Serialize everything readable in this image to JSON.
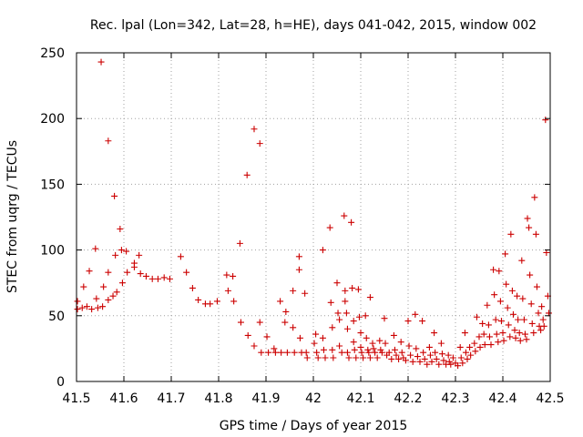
{
  "chart_data": {
    "type": "scatter",
    "title": "Rec. lpal (Lon=342, Lat=28, h=HE), days 041-042, 2015, window 002",
    "xlabel": "GPS time / Days of year 2015",
    "ylabel": "STEC from uqrg / TECUs",
    "xlim": [
      41.5,
      42.5
    ],
    "ylim": [
      0,
      250
    ],
    "x_ticks": [
      41.5,
      41.6,
      41.7,
      41.8,
      41.9,
      42,
      42.1,
      42.2,
      42.3,
      42.4,
      42.5
    ],
    "x_tick_labels": [
      "41.5",
      "41.6",
      "41.7",
      "41.8",
      "41.9",
      "42",
      "42.1",
      "42.2",
      "42.3",
      "42.4",
      "42.5"
    ],
    "y_ticks": [
      0,
      50,
      100,
      150,
      200,
      250
    ],
    "y_tick_labels": [
      "0",
      "50",
      "100",
      "150",
      "200",
      "250"
    ],
    "grid": true,
    "marker": "+",
    "color": "#cc0000",
    "series": [
      {
        "points": [
          [
            41.502,
            61
          ],
          [
            41.502,
            55
          ],
          [
            41.512,
            56
          ],
          [
            41.515,
            72
          ],
          [
            41.522,
            57
          ],
          [
            41.527,
            84
          ],
          [
            41.532,
            55
          ],
          [
            41.54,
            101
          ],
          [
            41.542,
            63
          ],
          [
            41.545,
            56
          ],
          [
            41.552,
            243
          ],
          [
            41.555,
            57
          ],
          [
            41.557,
            72
          ],
          [
            41.567,
            183
          ],
          [
            41.567,
            83
          ],
          [
            41.567,
            62
          ],
          [
            41.577,
            65
          ],
          [
            41.58,
            141
          ],
          [
            41.582,
            96
          ],
          [
            41.585,
            68
          ],
          [
            41.592,
            116
          ],
          [
            41.595,
            100
          ],
          [
            41.597,
            75
          ],
          [
            41.605,
            99
          ],
          [
            41.607,
            83
          ],
          [
            41.622,
            90
          ],
          [
            41.622,
            87
          ],
          [
            41.632,
            96
          ],
          [
            41.635,
            82
          ],
          [
            41.647,
            80
          ],
          [
            41.66,
            78
          ],
          [
            41.672,
            78
          ],
          [
            41.685,
            79
          ],
          [
            41.697,
            78
          ],
          [
            41.72,
            95
          ],
          [
            41.732,
            83
          ],
          [
            41.745,
            71
          ],
          [
            41.757,
            62
          ],
          [
            41.772,
            59
          ],
          [
            41.782,
            59
          ],
          [
            41.797,
            61
          ],
          [
            41.817,
            81
          ],
          [
            41.82,
            69
          ],
          [
            41.83,
            80
          ],
          [
            41.832,
            61
          ],
          [
            41.845,
            105
          ],
          [
            41.847,
            45
          ],
          [
            41.86,
            157
          ],
          [
            41.862,
            35
          ],
          [
            41.875,
            192
          ],
          [
            41.875,
            27
          ],
          [
            41.887,
            181
          ],
          [
            41.887,
            45
          ],
          [
            41.89,
            22
          ],
          [
            41.902,
            34
          ],
          [
            41.905,
            22
          ],
          [
            41.917,
            25
          ],
          [
            41.92,
            22
          ],
          [
            41.93,
            61
          ],
          [
            41.932,
            22
          ],
          [
            41.94,
            45
          ],
          [
            41.942,
            53
          ],
          [
            41.945,
            22
          ],
          [
            41.957,
            69
          ],
          [
            41.957,
            41
          ],
          [
            41.96,
            22
          ],
          [
            41.97,
            95
          ],
          [
            41.97,
            85
          ],
          [
            41.972,
            33
          ],
          [
            41.975,
            22
          ],
          [
            41.982,
            67
          ],
          [
            41.985,
            22
          ],
          [
            41.987,
            18
          ],
          [
            42.002,
            29
          ],
          [
            42.005,
            36
          ],
          [
            42.007,
            22
          ],
          [
            42.01,
            18
          ],
          [
            42.02,
            33
          ],
          [
            42.02,
            100
          ],
          [
            42.022,
            24
          ],
          [
            42.025,
            18
          ],
          [
            42.035,
            117
          ],
          [
            42.037,
            60
          ],
          [
            42.04,
            41
          ],
          [
            42.04,
            24
          ],
          [
            42.042,
            18
          ],
          [
            42.05,
            75
          ],
          [
            42.052,
            52
          ],
          [
            42.055,
            47
          ],
          [
            42.055,
            27
          ],
          [
            42.06,
            22
          ],
          [
            42.065,
            126
          ],
          [
            42.067,
            69
          ],
          [
            42.067,
            61
          ],
          [
            42.07,
            52
          ],
          [
            42.072,
            40
          ],
          [
            42.072,
            22
          ],
          [
            42.075,
            18
          ],
          [
            42.08,
            121
          ],
          [
            42.082,
            71
          ],
          [
            42.085,
            46
          ],
          [
            42.085,
            30
          ],
          [
            42.087,
            24
          ],
          [
            42.09,
            18
          ],
          [
            42.095,
            70
          ],
          [
            42.097,
            49
          ],
          [
            42.1,
            37
          ],
          [
            42.1,
            26
          ],
          [
            42.102,
            22
          ],
          [
            42.105,
            18
          ],
          [
            42.11,
            50
          ],
          [
            42.112,
            33
          ],
          [
            42.115,
            24
          ],
          [
            42.117,
            22
          ],
          [
            42.12,
            64
          ],
          [
            42.12,
            18
          ],
          [
            42.125,
            29
          ],
          [
            42.127,
            25
          ],
          [
            42.13,
            22
          ],
          [
            42.135,
            18
          ],
          [
            42.14,
            31
          ],
          [
            42.142,
            24
          ],
          [
            42.145,
            22
          ],
          [
            42.15,
            48
          ],
          [
            42.152,
            29
          ],
          [
            42.155,
            20
          ],
          [
            42.16,
            22
          ],
          [
            42.165,
            17
          ],
          [
            42.17,
            35
          ],
          [
            42.172,
            24
          ],
          [
            42.175,
            20
          ],
          [
            42.18,
            17
          ],
          [
            42.185,
            30
          ],
          [
            42.187,
            22
          ],
          [
            42.19,
            18
          ],
          [
            42.195,
            16
          ],
          [
            42.2,
            46
          ],
          [
            42.202,
            27
          ],
          [
            42.205,
            20
          ],
          [
            42.21,
            15
          ],
          [
            42.215,
            51
          ],
          [
            42.217,
            25
          ],
          [
            42.22,
            19
          ],
          [
            42.225,
            15
          ],
          [
            42.23,
            46
          ],
          [
            42.232,
            22
          ],
          [
            42.235,
            17
          ],
          [
            42.24,
            13
          ],
          [
            42.245,
            26
          ],
          [
            42.247,
            20
          ],
          [
            42.25,
            15
          ],
          [
            42.255,
            37
          ],
          [
            42.257,
            22
          ],
          [
            42.26,
            17
          ],
          [
            42.265,
            13
          ],
          [
            42.27,
            29
          ],
          [
            42.272,
            21
          ],
          [
            42.275,
            16
          ],
          [
            42.28,
            13
          ],
          [
            42.285,
            20
          ],
          [
            42.287,
            15
          ],
          [
            42.29,
            13
          ],
          [
            42.295,
            18
          ],
          [
            42.3,
            14
          ],
          [
            42.305,
            12
          ],
          [
            42.31,
            26
          ],
          [
            42.312,
            18
          ],
          [
            42.315,
            14
          ],
          [
            42.32,
            37
          ],
          [
            42.322,
            22
          ],
          [
            42.325,
            17
          ],
          [
            42.33,
            26
          ],
          [
            42.332,
            20
          ],
          [
            42.34,
            29
          ],
          [
            42.342,
            23
          ],
          [
            42.345,
            49
          ],
          [
            42.35,
            34
          ],
          [
            42.352,
            26
          ],
          [
            42.357,
            44
          ],
          [
            42.36,
            36
          ],
          [
            42.362,
            28
          ],
          [
            42.367,
            58
          ],
          [
            42.37,
            43
          ],
          [
            42.372,
            34
          ],
          [
            42.375,
            28
          ],
          [
            42.38,
            85
          ],
          [
            42.382,
            66
          ],
          [
            42.385,
            47
          ],
          [
            42.387,
            36
          ],
          [
            42.39,
            30
          ],
          [
            42.392,
            84
          ],
          [
            42.395,
            61
          ],
          [
            42.397,
            46
          ],
          [
            42.4,
            37
          ],
          [
            42.402,
            31
          ],
          [
            42.405,
            97
          ],
          [
            42.407,
            74
          ],
          [
            42.41,
            56
          ],
          [
            42.412,
            43
          ],
          [
            42.415,
            34
          ],
          [
            42.417,
            112
          ],
          [
            42.42,
            69
          ],
          [
            42.422,
            51
          ],
          [
            42.425,
            39
          ],
          [
            42.427,
            33
          ],
          [
            42.43,
            65
          ],
          [
            42.432,
            47
          ],
          [
            42.435,
            37
          ],
          [
            42.437,
            31
          ],
          [
            42.44,
            92
          ],
          [
            42.442,
            63
          ],
          [
            42.445,
            47
          ],
          [
            42.447,
            36
          ],
          [
            42.45,
            32
          ],
          [
            42.452,
            124
          ],
          [
            42.455,
            117
          ],
          [
            42.457,
            81
          ],
          [
            42.46,
            59
          ],
          [
            42.462,
            44
          ],
          [
            42.465,
            37
          ],
          [
            42.467,
            140
          ],
          [
            42.47,
            112
          ],
          [
            42.472,
            72
          ],
          [
            42.475,
            52
          ],
          [
            42.477,
            42
          ],
          [
            42.48,
            39
          ],
          [
            42.482,
            57
          ],
          [
            42.485,
            47
          ],
          [
            42.487,
            42
          ],
          [
            42.49,
            199
          ],
          [
            42.492,
            98
          ],
          [
            42.495,
            65
          ],
          [
            42.497,
            52
          ]
        ]
      }
    ]
  }
}
